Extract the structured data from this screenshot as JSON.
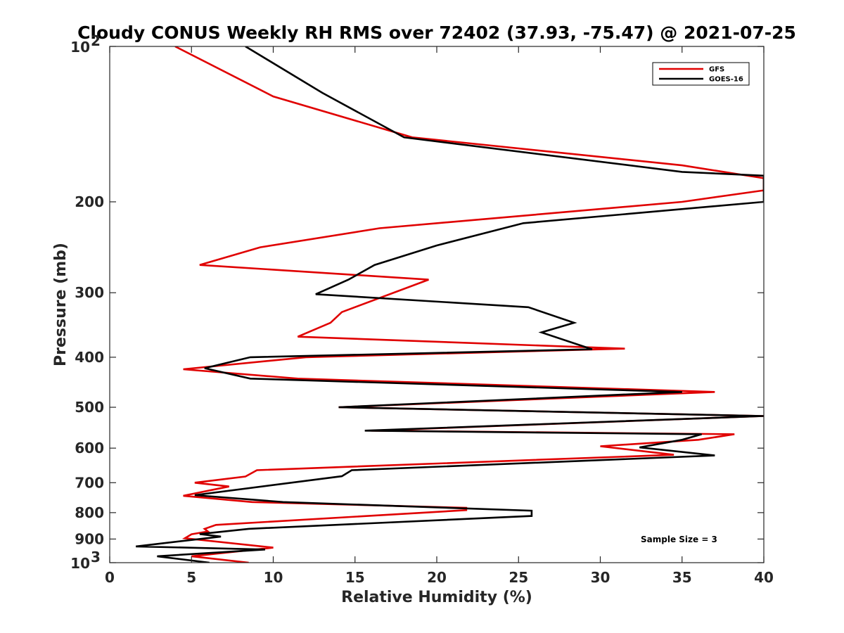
{
  "chart_data": {
    "type": "line",
    "title": "Cloudy CONUS Weekly RH RMS over 72402 (37.93, -75.47) @ 2021-07-25",
    "xlabel": "Relative Humidity (%)",
    "ylabel": "Pressure (mb)",
    "xlim": [
      0,
      40
    ],
    "ylim": [
      100,
      1000
    ],
    "y_scale": "log",
    "y_reversed": true,
    "grid": false,
    "legend_position": "top-right",
    "x_ticks": [
      "0",
      "5",
      "10",
      "15",
      "20",
      "25",
      "30",
      "35",
      "40"
    ],
    "x_tick_values": [
      0,
      5,
      10,
      15,
      20,
      25,
      30,
      35,
      40
    ],
    "y_ticks": [
      {
        "value": 100,
        "base": "10",
        "exp": "2"
      },
      {
        "value": 200,
        "label": "200"
      },
      {
        "value": 300,
        "label": "300"
      },
      {
        "value": 400,
        "label": "400"
      },
      {
        "value": 500,
        "label": "500"
      },
      {
        "value": 600,
        "label": "600"
      },
      {
        "value": 700,
        "label": "700"
      },
      {
        "value": 800,
        "label": "800"
      },
      {
        "value": 900,
        "label": "900"
      },
      {
        "value": 1000,
        "base": "10",
        "exp": "3"
      }
    ],
    "annotation": "Sample Size = 3",
    "series": [
      {
        "name": "GFS",
        "color": "#e00000",
        "points": [
          [
            4.0,
            100
          ],
          [
            10.0,
            125
          ],
          [
            18.5,
            150
          ],
          [
            35.0,
            170
          ],
          [
            40.0,
            180
          ],
          [
            40.0,
            190
          ],
          [
            35.0,
            200
          ],
          [
            16.5,
            225
          ],
          [
            9.2,
            245
          ],
          [
            5.5,
            265
          ],
          [
            19.5,
            283
          ],
          [
            14.2,
            327
          ],
          [
            13.5,
            343
          ],
          [
            11.5,
            365
          ],
          [
            31.5,
            385
          ],
          [
            12.0,
            400
          ],
          [
            4.5,
            422
          ],
          [
            11.5,
            440
          ],
          [
            37.0,
            467
          ],
          [
            14.0,
            500
          ],
          [
            40.0,
            520
          ],
          [
            16.0,
            555
          ],
          [
            38.2,
            564
          ],
          [
            36.0,
            578
          ],
          [
            30.0,
            595
          ],
          [
            34.5,
            618
          ],
          [
            9.0,
            662
          ],
          [
            8.3,
            681
          ],
          [
            5.2,
            700
          ],
          [
            7.3,
            712
          ],
          [
            4.5,
            742
          ],
          [
            8.7,
            763
          ],
          [
            21.8,
            783
          ],
          [
            21.8,
            791
          ],
          [
            6.5,
            845
          ],
          [
            5.8,
            860
          ],
          [
            6.0,
            870
          ],
          [
            5.0,
            881
          ],
          [
            4.6,
            897
          ],
          [
            10.0,
            935
          ],
          [
            5.0,
            972
          ],
          [
            8.5,
            1000
          ]
        ]
      },
      {
        "name": "GOES-16",
        "color": "#000000",
        "points": [
          [
            8.3,
            100
          ],
          [
            13.0,
            123
          ],
          [
            18.0,
            150
          ],
          [
            35.0,
            175
          ],
          [
            40.0,
            178
          ],
          [
            40.0,
            200
          ],
          [
            25.3,
            220
          ],
          [
            20.0,
            243
          ],
          [
            16.2,
            265
          ],
          [
            14.6,
            283
          ],
          [
            12.6,
            302
          ],
          [
            25.6,
            320
          ],
          [
            28.4,
            343
          ],
          [
            26.4,
            358
          ],
          [
            29.5,
            386
          ],
          [
            8.6,
            400
          ],
          [
            5.8,
            420
          ],
          [
            8.6,
            440
          ],
          [
            35.0,
            467
          ],
          [
            14.0,
            500
          ],
          [
            40.0,
            520
          ],
          [
            15.6,
            555
          ],
          [
            36.2,
            564
          ],
          [
            35.0,
            578
          ],
          [
            32.4,
            598
          ],
          [
            37.0,
            620
          ],
          [
            14.8,
            662
          ],
          [
            14.2,
            680
          ],
          [
            5.2,
            740
          ],
          [
            10.6,
            763
          ],
          [
            25.8,
            793
          ],
          [
            25.8,
            812
          ],
          [
            8.5,
            860
          ],
          [
            5.5,
            880
          ],
          [
            6.8,
            890
          ],
          [
            1.6,
            930
          ],
          [
            9.5,
            943
          ],
          [
            2.9,
            972
          ],
          [
            6.1,
            1000
          ]
        ]
      }
    ]
  }
}
